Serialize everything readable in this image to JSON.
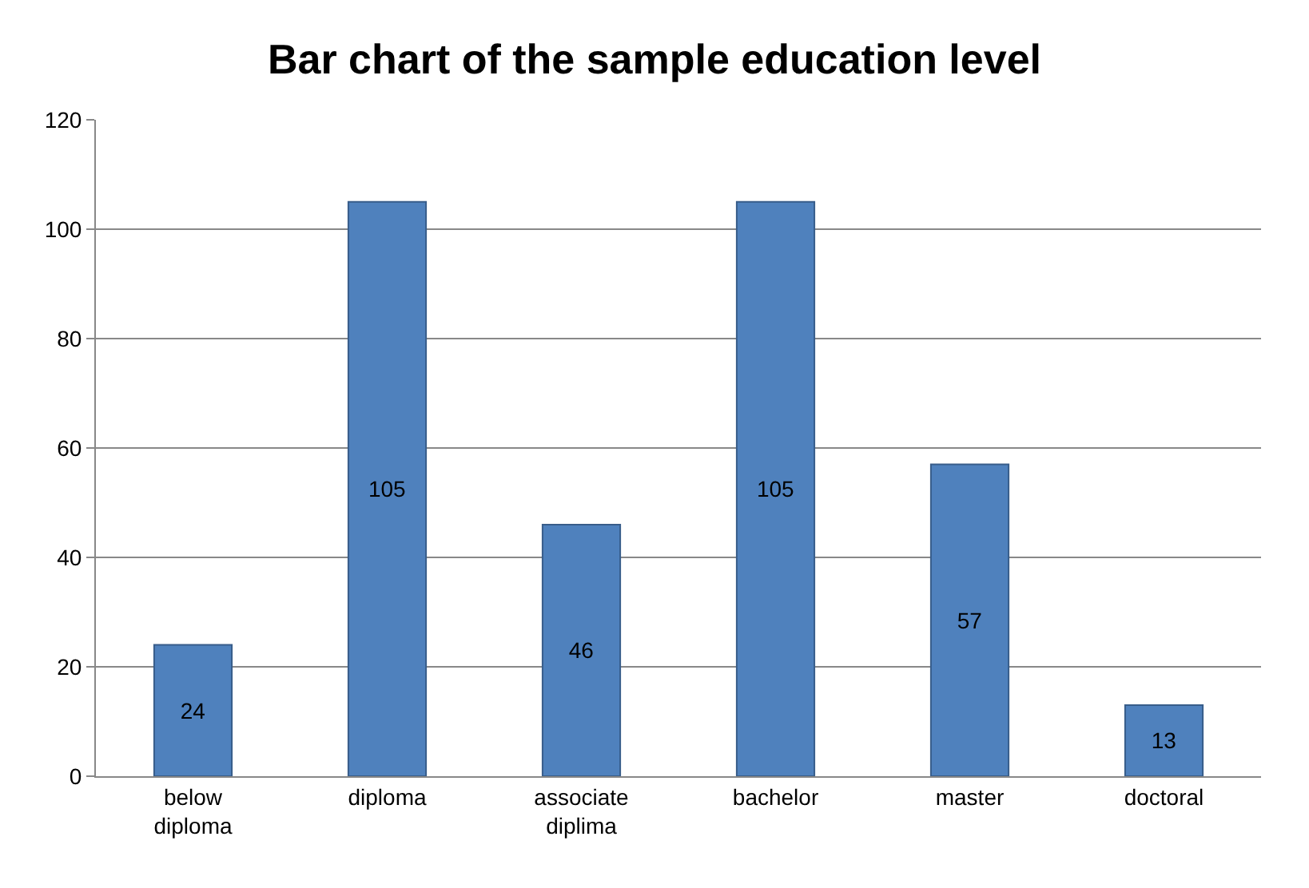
{
  "chart_data": {
    "type": "bar",
    "title": "Bar chart of the sample education level",
    "categories": [
      "below\ndiploma",
      "diploma",
      "associate\ndiplima",
      "bachelor",
      "master",
      "doctoral"
    ],
    "values": [
      24,
      105,
      46,
      105,
      57,
      13
    ],
    "color": "#4f81bd",
    "ylim": [
      0,
      120
    ],
    "yticks": [
      0,
      20,
      40,
      60,
      80,
      100,
      120
    ],
    "grid": "y",
    "data_labels": true
  }
}
